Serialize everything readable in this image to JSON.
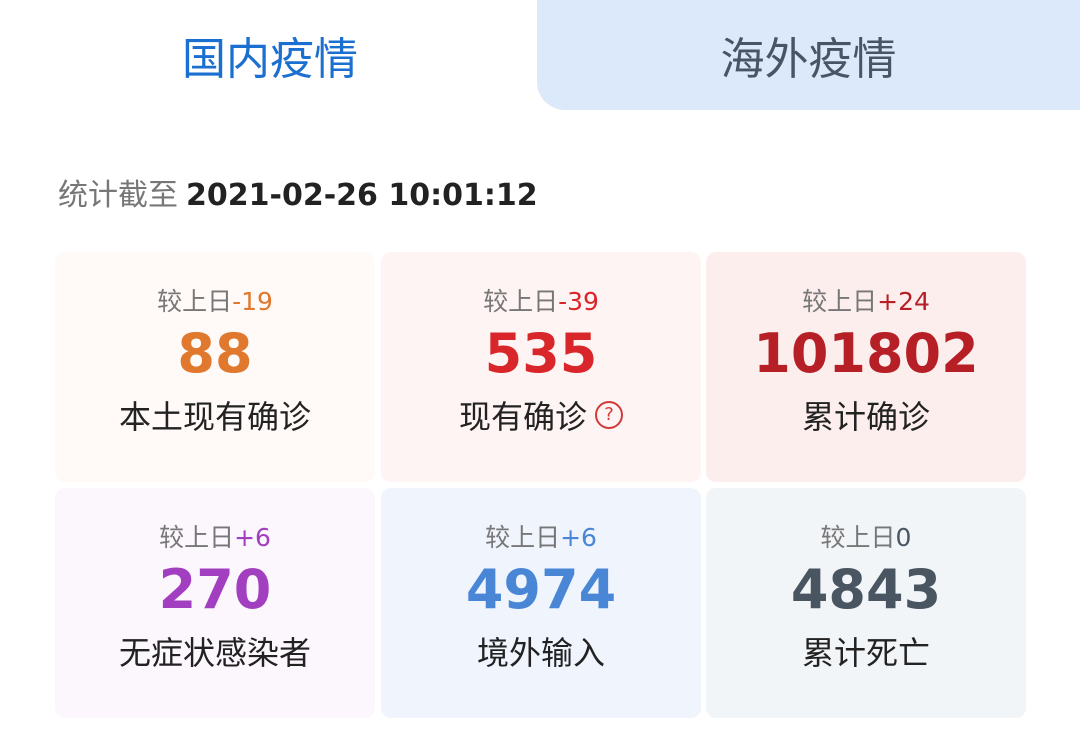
{
  "tabs": [
    {
      "label": "国内疫情",
      "active": true
    },
    {
      "label": "海外疫情",
      "active": false
    }
  ],
  "stats_time": {
    "label": "统计截至",
    "value": "2021-02-26 10:01:12"
  },
  "cards": [
    {
      "delta_label": "较上日",
      "delta": "-19",
      "value": "88",
      "name": "本土现有确诊",
      "color": "#e0782e",
      "bg": "#fffaf7"
    },
    {
      "delta_label": "较上日",
      "delta": "-39",
      "value": "535",
      "name": "现有确诊",
      "color": "#d9262a",
      "bg": "#fff4f4",
      "help_icon": "question-circle-icon"
    },
    {
      "delta_label": "较上日",
      "delta": "+24",
      "value": "101802",
      "name": "累计确诊",
      "color": "#b51f25",
      "bg": "#fdeeee"
    },
    {
      "delta_label": "较上日",
      "delta": "+6",
      "value": "270",
      "name": "无症状感染者",
      "color": "#a23fc0",
      "bg": "#fcf6fd"
    },
    {
      "delta_label": "较上日",
      "delta": "+6",
      "value": "4974",
      "name": "境外输入",
      "color": "#4a86d6",
      "bg": "#eff4fd"
    },
    {
      "delta_label": "较上日",
      "delta": "0",
      "value": "4843",
      "name": "累计死亡",
      "color": "#4a5562",
      "bg": "#f2f5f8"
    }
  ]
}
